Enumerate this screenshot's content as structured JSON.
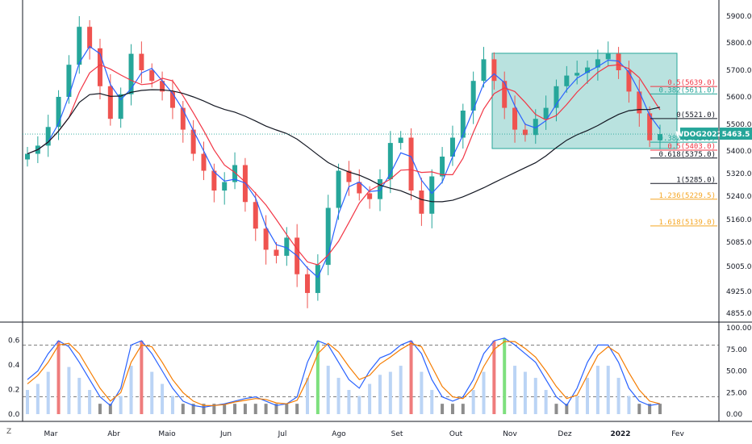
{
  "chart_data": [
    {
      "type": "candlestick",
      "symbol_badge": "WDOG2022",
      "last_price_label": "5463.5",
      "y_ticks": [
        "5900.0",
        "5800.0",
        "5700.0",
        "5600.0",
        "5500.0",
        "5400.0",
        "5320.0",
        "5240.0",
        "5160.0",
        "5085.0",
        "5005.0",
        "4925.0",
        "4855.0"
      ],
      "x_ticks": [
        "Mar",
        "Abr",
        "Maio",
        "Jun",
        "Jul",
        "Ago",
        "Set",
        "Out",
        "Nov",
        "Dez",
        "2022",
        "Fev"
      ],
      "candles_close_path": [
        5390,
        5420,
        5490,
        5600,
        5720,
        5860,
        5780,
        5640,
        5520,
        5610,
        5760,
        5700,
        5660,
        5620,
        5560,
        5480,
        5390,
        5330,
        5260,
        5290,
        5350,
        5220,
        5130,
        5060,
        5040,
        5100,
        4980,
        4920,
        5010,
        5200,
        5330,
        5290,
        5250,
        5230,
        5300,
        5430,
        5450,
        5260,
        5180,
        5310,
        5380,
        5450,
        5550,
        5660,
        5740,
        5660,
        5560,
        5480,
        5460,
        5520,
        5560,
        5640,
        5680,
        5690,
        5710,
        5740,
        5760,
        5700,
        5620,
        5540,
        5440,
        5463.5
      ],
      "overlays": {
        "ma_fast_color": "#2962ff",
        "ma_slow_color": "#f23645",
        "ma_long_color": "#131722",
        "box_color": "#26a69a"
      },
      "fib_levels": [
        {
          "label": "0.5(5639.0)",
          "value": 5639,
          "color": "#f23645"
        },
        {
          "label": "0.382(5611.0)",
          "value": 5611,
          "color": "#26a69a"
        },
        {
          "label": "0(5521.0)",
          "value": 5521,
          "color": "#131722"
        },
        {
          "label": "0.382(5433.0)",
          "value": 5433,
          "color": "#26a69a"
        },
        {
          "label": "0.5(5403.0)",
          "value": 5403,
          "color": "#f23645"
        },
        {
          "label": "0.618(5375.0)",
          "value": 5375,
          "color": "#131722"
        },
        {
          "label": "1(5285.0)",
          "value": 5285,
          "color": "#131722"
        },
        {
          "label": "1.236(5229.5)",
          "value": 5229.5,
          "color": "#f5a623"
        },
        {
          "label": "1.618(5139.0)",
          "value": 5139,
          "color": "#f5a623"
        }
      ]
    },
    {
      "type": "line",
      "left_ticks": [
        "0.6",
        "0.4",
        "0.2",
        "0.0"
      ],
      "right_ticks": [
        "100.00",
        "75.00",
        "50.00",
        "25.00",
        "0.00"
      ],
      "ylim": [
        0,
        100
      ],
      "upper_level": 80,
      "lower_level": 20,
      "series": [
        {
          "color": "#2962ff",
          "values": [
            40,
            50,
            70,
            85,
            78,
            60,
            40,
            20,
            10,
            30,
            80,
            85,
            70,
            50,
            30,
            15,
            10,
            8,
            10,
            12,
            15,
            18,
            20,
            15,
            10,
            12,
            20,
            60,
            85,
            80,
            60,
            40,
            30,
            50,
            65,
            70,
            80,
            85,
            70,
            40,
            20,
            15,
            20,
            40,
            70,
            85,
            88,
            80,
            70,
            60,
            40,
            20,
            10,
            30,
            60,
            80,
            80,
            60,
            30,
            15,
            10,
            12
          ]
        },
        {
          "color": "#f57c00",
          "values": [
            35,
            45,
            60,
            80,
            82,
            70,
            50,
            30,
            15,
            25,
            60,
            80,
            78,
            60,
            40,
            25,
            15,
            10,
            10,
            11,
            14,
            16,
            18,
            17,
            13,
            12,
            16,
            40,
            70,
            82,
            72,
            55,
            40,
            45,
            58,
            66,
            75,
            82,
            78,
            55,
            32,
            20,
            18,
            30,
            55,
            75,
            84,
            84,
            76,
            66,
            50,
            32,
            18,
            22,
            45,
            68,
            78,
            70,
            48,
            28,
            15,
            12
          ]
        }
      ],
      "histogram": {
        "gray_color": "#8c8c8c",
        "blue_color": "#bbd4f5",
        "red_color": "#ef7c7c",
        "green_color": "#7ee07e"
      }
    }
  ],
  "corner_label": "Z"
}
